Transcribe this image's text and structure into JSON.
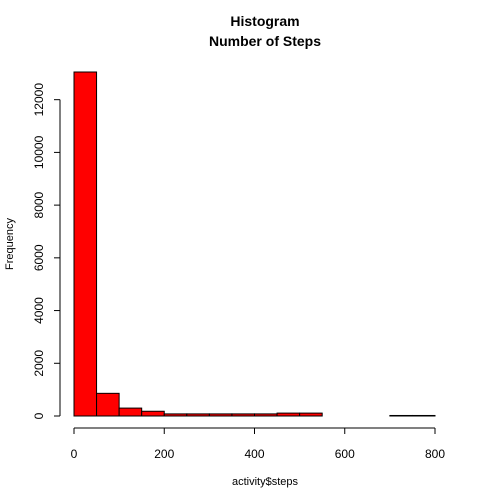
{
  "chart_data": {
    "type": "bar",
    "title": "Histogram",
    "subtitle": "Number of Steps",
    "xlabel": "activity$steps",
    "ylabel": "Frequency",
    "bar_color": "#ff0000",
    "bin_width": 50,
    "bins": [
      {
        "start": 0,
        "end": 50,
        "value": 13050
      },
      {
        "start": 50,
        "end": 100,
        "value": 860
      },
      {
        "start": 100,
        "end": 150,
        "value": 300
      },
      {
        "start": 150,
        "end": 200,
        "value": 180
      },
      {
        "start": 200,
        "end": 250,
        "value": 80
      },
      {
        "start": 250,
        "end": 300,
        "value": 80
      },
      {
        "start": 300,
        "end": 350,
        "value": 80
      },
      {
        "start": 350,
        "end": 400,
        "value": 80
      },
      {
        "start": 400,
        "end": 450,
        "value": 80
      },
      {
        "start": 450,
        "end": 500,
        "value": 110
      },
      {
        "start": 500,
        "end": 550,
        "value": 110
      },
      {
        "start": 550,
        "end": 600,
        "value": 0
      },
      {
        "start": 600,
        "end": 650,
        "value": 0
      },
      {
        "start": 650,
        "end": 700,
        "value": 0
      },
      {
        "start": 700,
        "end": 750,
        "value": 20
      },
      {
        "start": 750,
        "end": 800,
        "value": 20
      }
    ],
    "xlim": [
      0,
      800
    ],
    "ylim": [
      0,
      13050
    ],
    "x_ticks": [
      "0",
      "200",
      "400",
      "600",
      "800"
    ],
    "y_ticks": [
      "0",
      "2000",
      "4000",
      "6000",
      "8000",
      "10000",
      "12000"
    ],
    "grid": false
  }
}
